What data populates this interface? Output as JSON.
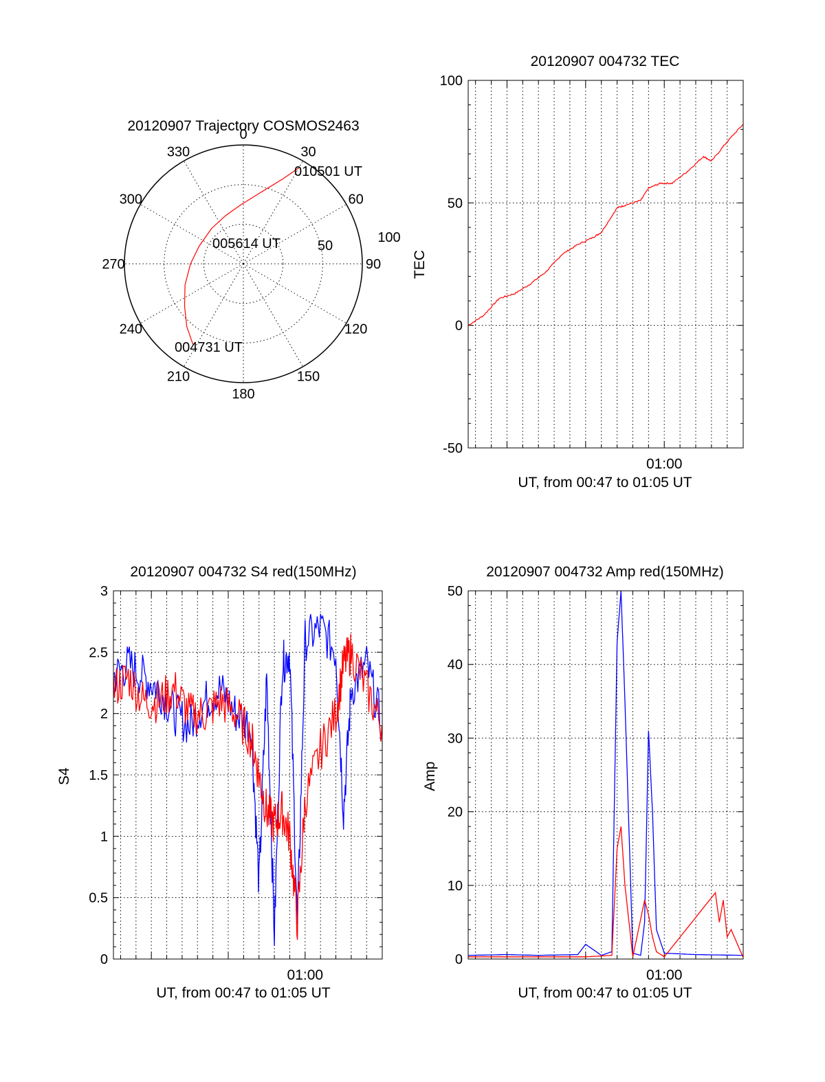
{
  "colors": {
    "red": "#ff0000",
    "blue": "#0000ff",
    "axis": "#000000"
  },
  "chart_data": [
    {
      "type": "polar",
      "title": "20120907 Trajectory COSMOS2463",
      "azimuth_labels": [
        "0",
        "30",
        "60",
        "90",
        "120",
        "150",
        "180",
        "210",
        "240",
        "270",
        "300",
        "330"
      ],
      "radial_labels": [
        "50",
        "100"
      ],
      "grid": true,
      "series": [
        {
          "color": "#ff0000",
          "points": [
            {
              "az": 212,
              "r": 72
            },
            {
              "az": 222,
              "r": 64
            },
            {
              "az": 234,
              "r": 55
            },
            {
              "az": 250,
              "r": 47
            },
            {
              "az": 270,
              "r": 40
            },
            {
              "az": 292,
              "r": 36
            },
            {
              "az": 318,
              "r": 36
            },
            {
              "az": 340,
              "r": 39
            },
            {
              "az": 358,
              "r": 45
            },
            {
              "az": 14,
              "r": 56
            },
            {
              "az": 25,
              "r": 71
            },
            {
              "az": 30,
              "r": 84
            }
          ]
        }
      ],
      "annotations": [
        {
          "text": "010501 UT",
          "az": 30,
          "r": 84
        },
        {
          "text": "005614 UT",
          "az": 300,
          "r": 18
        },
        {
          "text": "004731 UT",
          "az": 212,
          "r": 72
        }
      ]
    },
    {
      "type": "line",
      "title": "20120907 004732 TEC",
      "xlabel": "UT, from 00:47 to 01:05 UT",
      "ylabel": "TEC",
      "xlim": [
        "00:47:32",
        "01:05:01"
      ],
      "ylim": [
        -50,
        100
      ],
      "xtick_labels": [
        "01:00"
      ],
      "ytick_labels": [
        "-50",
        "0",
        "50",
        "100"
      ],
      "grid": true,
      "series": [
        {
          "color": "#ff0000",
          "x": [
            "00:47:32",
            "00:48:30",
            "00:49:30",
            "00:50:30",
            "00:51:30",
            "00:52:30",
            "00:53:30",
            "00:54:30",
            "00:55:30",
            "00:56:00",
            "00:57:00",
            "00:57:30",
            "00:58:30",
            "00:59:00",
            "00:59:45",
            "01:00:30",
            "01:01:30",
            "01:02:30",
            "01:03:00",
            "01:04:00",
            "01:05:00"
          ],
          "values": [
            0,
            4,
            11,
            13,
            17,
            22,
            29,
            33,
            36,
            38,
            48,
            49,
            51,
            56,
            58,
            58,
            63,
            69,
            67,
            75,
            82
          ]
        }
      ]
    },
    {
      "type": "line",
      "title": "20120907 004732 S4 red(150MHz)",
      "xlabel": "UT, from 00:47 to 01:05 UT",
      "ylabel": "S4",
      "xlim": [
        "00:47:32",
        "01:05:01"
      ],
      "ylim": [
        0,
        3
      ],
      "xtick_labels": [
        "01:00"
      ],
      "ytick_labels": [
        "0",
        "0.5",
        "1",
        "1.5",
        "2",
        "2.5",
        "3"
      ],
      "grid": true,
      "series": [
        {
          "color": "#0000ff",
          "x": [
            "00:47:32",
            "00:48:30",
            "00:49:30",
            "00:50:30",
            "00:51:30",
            "00:52:30",
            "00:53:30",
            "00:54:30",
            "00:55:30",
            "00:56:30",
            "00:57:00",
            "00:57:30",
            "00:58:00",
            "00:58:30",
            "00:59:00",
            "00:59:30",
            "01:00:00",
            "01:01:00",
            "01:02:00",
            "01:02:30",
            "01:03:00",
            "01:04:00",
            "01:05:00"
          ],
          "values": [
            2.3,
            2.4,
            2.3,
            2.2,
            2.0,
            1.9,
            2.1,
            2.2,
            2.0,
            1.9,
            0.6,
            2.3,
            0.2,
            2.4,
            2.5,
            0.25,
            2.6,
            2.7,
            2.5,
            1.2,
            2.2,
            2.4,
            1.9
          ]
        },
        {
          "color": "#ff0000",
          "x": [
            "00:47:32",
            "00:48:30",
            "00:49:30",
            "00:50:30",
            "00:51:30",
            "00:52:30",
            "00:53:30",
            "00:54:30",
            "00:55:30",
            "00:56:30",
            "00:57:00",
            "00:57:30",
            "00:58:00",
            "00:58:30",
            "00:59:00",
            "00:59:30",
            "01:00:00",
            "01:01:00",
            "01:02:00",
            "01:02:30",
            "01:03:00",
            "01:04:00",
            "01:05:00"
          ],
          "values": [
            2.2,
            2.3,
            2.1,
            2.1,
            2.2,
            2.0,
            2.0,
            2.1,
            2.0,
            1.8,
            1.5,
            1.2,
            1.1,
            1.2,
            1.0,
            0.3,
            1.3,
            1.7,
            2.0,
            2.4,
            2.5,
            2.2,
            1.9
          ]
        }
      ]
    },
    {
      "type": "line",
      "title": "20120907 004732 Amp red(150MHz)",
      "xlabel": "UT, from 00:47 to 01:05 UT",
      "ylabel": "Amp",
      "xlim": [
        "00:47:32",
        "01:05:01"
      ],
      "ylim": [
        0,
        50
      ],
      "xtick_labels": [
        "01:00"
      ],
      "ytick_labels": [
        "0",
        "10",
        "20",
        "30",
        "40",
        "50"
      ],
      "grid": true,
      "series": [
        {
          "color": "#0000ff",
          "x": [
            "00:47:32",
            "00:50:00",
            "00:52:00",
            "00:54:30",
            "00:55:00",
            "00:56:00",
            "00:56:40",
            "00:57:00",
            "00:57:15",
            "00:57:30",
            "00:58:00",
            "00:58:30",
            "00:58:45",
            "00:59:00",
            "00:59:15",
            "00:59:30",
            "01:00:00",
            "01:02:00",
            "01:05:00"
          ],
          "values": [
            0.5,
            0.6,
            0.5,
            0.6,
            2.0,
            0.5,
            1.0,
            43,
            50,
            35,
            0.8,
            0.5,
            5,
            31,
            20,
            4,
            0.8,
            0.6,
            0.5
          ]
        },
        {
          "color": "#ff0000",
          "x": [
            "00:47:32",
            "00:55:00",
            "00:56:40",
            "00:57:00",
            "00:57:15",
            "00:57:30",
            "00:58:00",
            "00:58:45",
            "00:59:00",
            "00:59:15",
            "00:59:30",
            "01:00:00",
            "01:03:15",
            "01:03:30",
            "01:03:45",
            "01:04:00",
            "01:04:15",
            "01:05:00"
          ],
          "values": [
            0.3,
            0.3,
            0.5,
            15,
            18,
            10,
            0.3,
            8,
            6,
            3,
            1,
            0.3,
            9,
            5,
            8,
            3,
            4,
            0.3
          ]
        }
      ]
    }
  ]
}
